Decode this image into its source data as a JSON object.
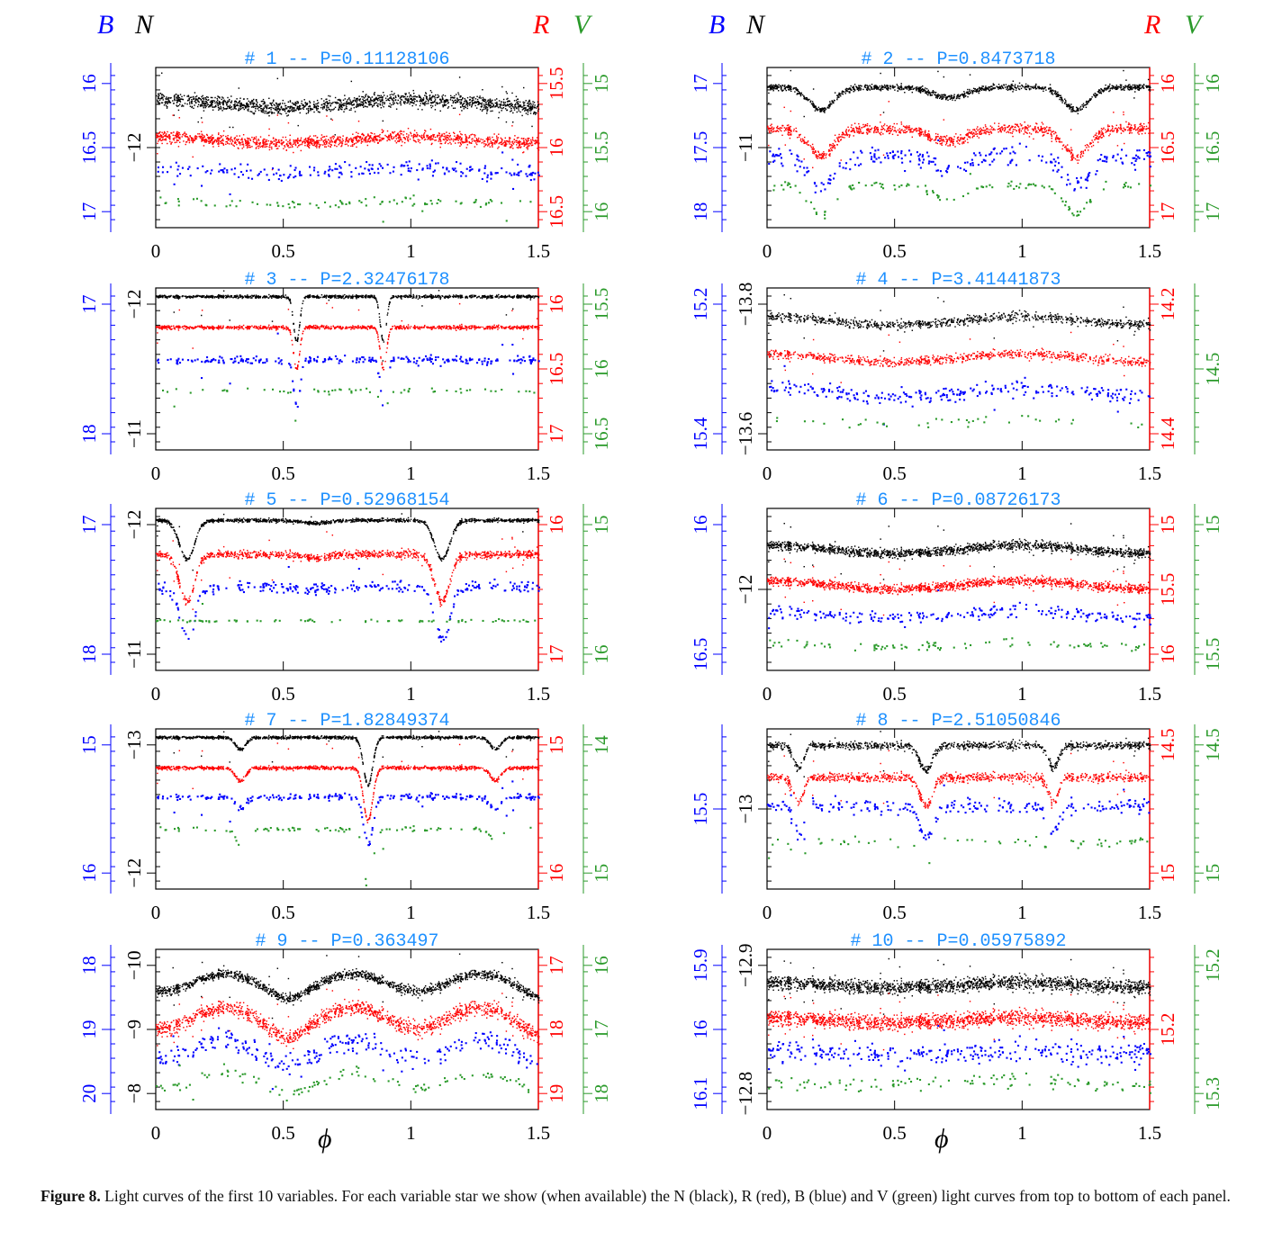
{
  "header": {
    "left": {
      "b": "B",
      "n": "N",
      "r": "R",
      "v": "V"
    },
    "right": {
      "b": "B",
      "n": "N",
      "r": "R",
      "v": "V"
    }
  },
  "colors": {
    "N": "#000000",
    "R": "#ff0000",
    "B": "#0000ff",
    "V": "#2a9a2a",
    "title": "#1e90ff"
  },
  "xlabel": "ϕ",
  "caption": {
    "label": "Figure 8.",
    "text": "Light curves of the first 10 variables. For each variable star we show (when available) the N (black), R (red), B (blue) and V (green) light curves from top to bottom of each panel."
  },
  "chart_data": [
    {
      "type": "scatter",
      "title": "# 1 -- P=0.11128106",
      "xlim": [
        0,
        1.5
      ],
      "xticks": [
        "0",
        "0.5",
        "1",
        "1.5"
      ],
      "axes": {
        "B": [
          "16",
          "16.5",
          "17"
        ],
        "N": [
          "−12"
        ],
        "R": [
          "15.5",
          "16",
          "16.5"
        ],
        "V": [
          "15",
          "15.5",
          "16"
        ]
      },
      "series": [
        {
          "band": "N",
          "level": 0.22,
          "amp": 0.05,
          "shape": "sine",
          "noise": 0.045,
          "count": 1600
        },
        {
          "band": "R",
          "level": 0.45,
          "amp": 0.04,
          "shape": "sine",
          "noise": 0.04,
          "count": 1400
        },
        {
          "band": "B",
          "level": 0.64,
          "amp": 0.03,
          "shape": "sine",
          "noise": 0.05,
          "count": 220
        },
        {
          "band": "V",
          "level": 0.84,
          "amp": 0.02,
          "shape": "sine",
          "noise": 0.03,
          "count": 90
        }
      ]
    },
    {
      "type": "scatter",
      "title": "# 2 -- P=0.8473718",
      "xlim": [
        0,
        1.5
      ],
      "xticks": [
        "0",
        "0.5",
        "1",
        "1.5"
      ],
      "axes": {
        "B": [
          "17",
          "17.5",
          "18"
        ],
        "N": [
          "−11"
        ],
        "R": [
          "16",
          "16.5",
          "17"
        ],
        "V": [
          "16",
          "16.5",
          "17"
        ]
      },
      "series": [
        {
          "band": "N",
          "level": 0.12,
          "amp": 0.14,
          "shape": "eb",
          "noise": 0.02,
          "count": 1200
        },
        {
          "band": "R",
          "level": 0.38,
          "amp": 0.17,
          "shape": "eb",
          "noise": 0.035,
          "count": 1100
        },
        {
          "band": "B",
          "level": 0.55,
          "amp": 0.18,
          "shape": "eb",
          "noise": 0.06,
          "count": 260
        },
        {
          "band": "V",
          "level": 0.73,
          "amp": 0.18,
          "shape": "eb",
          "noise": 0.03,
          "count": 120
        }
      ]
    },
    {
      "type": "scatter",
      "title": "# 3 -- P=2.32476178",
      "xlim": [
        0,
        1.5
      ],
      "xticks": [
        "0",
        "0.5",
        "1",
        "1.5"
      ],
      "axes": {
        "B": [
          "17",
          "18"
        ],
        "N": [
          "−12",
          "−11"
        ],
        "R": [
          "16",
          "16.5",
          "17"
        ],
        "V": [
          "15.5",
          "16",
          "16.5"
        ]
      },
      "series": [
        {
          "band": "N",
          "level": 0.05,
          "amp": 0.28,
          "shape": "detached",
          "noise": 0.01,
          "count": 1100
        },
        {
          "band": "R",
          "level": 0.24,
          "amp": 0.26,
          "shape": "detached",
          "noise": 0.012,
          "count": 1000
        },
        {
          "band": "B",
          "level": 0.44,
          "amp": 0.3,
          "shape": "detached",
          "noise": 0.025,
          "count": 260
        },
        {
          "band": "V",
          "level": 0.63,
          "amp": 0.2,
          "shape": "detached",
          "noise": 0.015,
          "count": 60
        }
      ]
    },
    {
      "type": "scatter",
      "title": "# 4 -- P=3.41441873",
      "xlim": [
        0,
        1.5
      ],
      "xticks": [
        "0",
        "0.5",
        "1",
        "1.5"
      ],
      "axes": {
        "B": [
          "15.2",
          "15.4"
        ],
        "N": [
          "−13.8",
          "−13.6"
        ],
        "R": [
          "14.2",
          "14.4"
        ],
        "V": [
          "14.5"
        ]
      },
      "series": [
        {
          "band": "N",
          "level": 0.2,
          "amp": 0.05,
          "shape": "sine",
          "noise": 0.03,
          "count": 900
        },
        {
          "band": "R",
          "level": 0.43,
          "amp": 0.05,
          "shape": "sine",
          "noise": 0.03,
          "count": 850
        },
        {
          "band": "B",
          "level": 0.64,
          "amp": 0.06,
          "shape": "sine",
          "noise": 0.05,
          "count": 260
        },
        {
          "band": "V",
          "level": 0.82,
          "amp": 0.03,
          "shape": "sine",
          "noise": 0.03,
          "count": 40
        }
      ]
    },
    {
      "type": "scatter",
      "title": "# 5 -- P=0.52968154",
      "xlim": [
        0,
        1.5
      ],
      "xticks": [
        "0",
        "0.5",
        "1",
        "1.5"
      ],
      "axes": {
        "B": [
          "17",
          "18"
        ],
        "N": [
          "−12",
          "−11"
        ],
        "R": [
          "16",
          "17"
        ],
        "V": [
          "15",
          "16"
        ]
      },
      "series": [
        {
          "band": "N",
          "level": 0.07,
          "amp": 0.24,
          "shape": "algol",
          "noise": 0.012,
          "count": 1200
        },
        {
          "band": "R",
          "level": 0.28,
          "amp": 0.29,
          "shape": "algol",
          "noise": 0.025,
          "count": 1100
        },
        {
          "band": "B",
          "level": 0.48,
          "amp": 0.32,
          "shape": "algol",
          "noise": 0.04,
          "count": 260
        },
        {
          "band": "V",
          "level": 0.69,
          "amp": 0.0,
          "shape": "algol",
          "noise": 0.01,
          "count": 80
        }
      ]
    },
    {
      "type": "scatter",
      "title": "# 6 -- P=0.08726173",
      "xlim": [
        0,
        1.5
      ],
      "xticks": [
        "0",
        "0.5",
        "1",
        "1.5"
      ],
      "axes": {
        "B": [
          "16",
          "16.5"
        ],
        "N": [
          "−12"
        ],
        "R": [
          "15",
          "15.5",
          "16"
        ],
        "V": [
          "15",
          "15.5"
        ]
      },
      "series": [
        {
          "band": "N",
          "level": 0.25,
          "amp": 0.05,
          "shape": "sine",
          "noise": 0.03,
          "count": 1500
        },
        {
          "band": "R",
          "level": 0.47,
          "amp": 0.05,
          "shape": "sine",
          "noise": 0.03,
          "count": 1400
        },
        {
          "band": "B",
          "level": 0.65,
          "amp": 0.04,
          "shape": "sine",
          "noise": 0.04,
          "count": 230
        },
        {
          "band": "V",
          "level": 0.84,
          "amp": 0.03,
          "shape": "sine",
          "noise": 0.03,
          "count": 90
        }
      ]
    },
    {
      "type": "scatter",
      "title": "# 7 -- P=1.82849374",
      "xlim": [
        0,
        1.5
      ],
      "xticks": [
        "0",
        "0.5",
        "1",
        "1.5"
      ],
      "axes": {
        "B": [
          "15",
          "16"
        ],
        "N": [
          "−13",
          "−12"
        ],
        "R": [
          "15",
          "16"
        ],
        "V": [
          "14",
          "15"
        ]
      },
      "series": [
        {
          "band": "N",
          "level": 0.05,
          "amp": 0.3,
          "shape": "detached2",
          "noise": 0.01,
          "count": 1200
        },
        {
          "band": "R",
          "level": 0.24,
          "amp": 0.33,
          "shape": "detached2",
          "noise": 0.012,
          "count": 1100
        },
        {
          "band": "B",
          "level": 0.42,
          "amp": 0.3,
          "shape": "detached2",
          "noise": 0.02,
          "count": 260
        },
        {
          "band": "V",
          "level": 0.62,
          "amp": 0.38,
          "shape": "detached2",
          "noise": 0.015,
          "count": 90
        }
      ]
    },
    {
      "type": "scatter",
      "title": "# 8 -- P=2.51050846",
      "xlim": [
        0,
        1.5
      ],
      "xticks": [
        "0",
        "0.5",
        "1",
        "1.5"
      ],
      "axes": {
        "B": [
          "15.5"
        ],
        "N": [
          "−13"
        ],
        "R": [
          "14.5",
          "15"
        ],
        "V": [
          "14.5",
          "15"
        ]
      },
      "series": [
        {
          "band": "N",
          "level": 0.1,
          "amp": 0.2,
          "shape": "eb8",
          "noise": 0.025,
          "count": 1000
        },
        {
          "band": "R",
          "level": 0.3,
          "amp": 0.22,
          "shape": "eb8",
          "noise": 0.03,
          "count": 950
        },
        {
          "band": "B",
          "level": 0.48,
          "amp": 0.25,
          "shape": "eb8",
          "noise": 0.05,
          "count": 240
        },
        {
          "band": "V",
          "level": 0.7,
          "amp": 0.2,
          "shape": "eb8",
          "noise": 0.03,
          "count": 60
        }
      ]
    },
    {
      "type": "scatter",
      "title": "# 9 -- P=0.363497",
      "xlim": [
        0,
        1.5
      ],
      "xticks": [
        "0",
        "0.5",
        "1",
        "1.5"
      ],
      "axes": {
        "B": [
          "18",
          "19",
          "20"
        ],
        "N": [
          "−10",
          "−9",
          "−8"
        ],
        "R": [
          "17",
          "18",
          "19"
        ],
        "V": [
          "16",
          "17",
          "18"
        ]
      },
      "series": [
        {
          "band": "N",
          "level": 0.15,
          "amp": 0.18,
          "shape": "wuma",
          "noise": 0.03,
          "count": 1500
        },
        {
          "band": "R",
          "level": 0.36,
          "amp": 0.22,
          "shape": "wuma",
          "noise": 0.05,
          "count": 1400
        },
        {
          "band": "B",
          "level": 0.56,
          "amp": 0.2,
          "shape": "wuma",
          "noise": 0.07,
          "count": 280
        },
        {
          "band": "V",
          "level": 0.77,
          "amp": 0.15,
          "shape": "wuma",
          "noise": 0.04,
          "count": 110
        }
      ]
    },
    {
      "type": "scatter",
      "title": "# 10 -- P=0.05975892",
      "xlim": [
        0,
        1.5
      ],
      "xticks": [
        "0",
        "0.5",
        "1",
        "1.5"
      ],
      "axes": {
        "B": [
          "15.9",
          "16",
          "16.1"
        ],
        "N": [
          "−12.9",
          "−12.8"
        ],
        "R": [
          "15.2"
        ],
        "V": [
          "15.2",
          "15.3"
        ]
      },
      "series": [
        {
          "band": "N",
          "level": 0.22,
          "amp": 0.03,
          "shape": "sine",
          "noise": 0.045,
          "count": 1800
        },
        {
          "band": "R",
          "level": 0.44,
          "amp": 0.03,
          "shape": "sine",
          "noise": 0.05,
          "count": 1700
        },
        {
          "band": "B",
          "level": 0.64,
          "amp": 0.02,
          "shape": "sine",
          "noise": 0.07,
          "count": 300
        },
        {
          "band": "V",
          "level": 0.83,
          "amp": 0.02,
          "shape": "sine",
          "noise": 0.05,
          "count": 110
        }
      ]
    }
  ]
}
